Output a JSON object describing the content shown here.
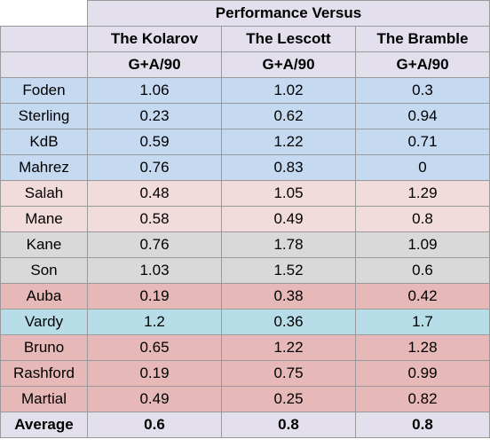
{
  "table": {
    "group_header": "Performance Versus",
    "opponents": [
      "The Kolarov",
      "The Lescott",
      "The Bramble"
    ],
    "metric": "G+A/90",
    "rows": [
      {
        "name": "Foden",
        "values": [
          "1.06",
          "1.02",
          "0.3"
        ],
        "color": "#c5d9f1"
      },
      {
        "name": "Sterling",
        "values": [
          "0.23",
          "0.62",
          "0.94"
        ],
        "color": "#c5d9f1"
      },
      {
        "name": "KdB",
        "values": [
          "0.59",
          "1.22",
          "0.71"
        ],
        "color": "#c5d9f1"
      },
      {
        "name": "Mahrez",
        "values": [
          "0.76",
          "0.83",
          "0"
        ],
        "color": "#c5d9f1"
      },
      {
        "name": "Salah",
        "values": [
          "0.48",
          "1.05",
          "1.29"
        ],
        "color": "#f2dcdb"
      },
      {
        "name": "Mane",
        "values": [
          "0.58",
          "0.49",
          "0.8"
        ],
        "color": "#f2dcdb"
      },
      {
        "name": "Kane",
        "values": [
          "0.76",
          "1.78",
          "1.09"
        ],
        "color": "#d9d9d9"
      },
      {
        "name": "Son",
        "values": [
          "1.03",
          "1.52",
          "0.6"
        ],
        "color": "#d9d9d9"
      },
      {
        "name": "Auba",
        "values": [
          "0.19",
          "0.38",
          "0.42"
        ],
        "color": "#e6b8b7"
      },
      {
        "name": "Vardy",
        "values": [
          "1.2",
          "0.36",
          "1.7"
        ],
        "color": "#b7dee8"
      },
      {
        "name": "Bruno",
        "values": [
          "0.65",
          "1.22",
          "1.28"
        ],
        "color": "#e6b8b7"
      },
      {
        "name": "Rashford",
        "values": [
          "0.19",
          "0.75",
          "0.99"
        ],
        "color": "#e6b8b7"
      },
      {
        "name": "Martial",
        "values": [
          "0.49",
          "0.25",
          "0.82"
        ],
        "color": "#e6b8b7"
      }
    ],
    "average": {
      "label": "Average",
      "values": [
        "0.6",
        "0.8",
        "0.8"
      ],
      "color": "#e4dfec"
    },
    "header_color": "#e4dfec",
    "blank_color": "#ffffff"
  }
}
